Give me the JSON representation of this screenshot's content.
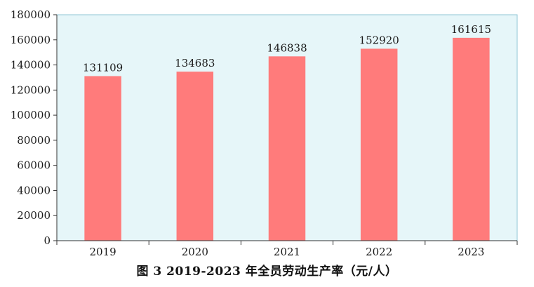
{
  "caption": "图 3   2019-2023 年全员劳动生产率（元/人）",
  "colors": {
    "bar": "#ff7b7b",
    "plot_background": "#e6f6f9",
    "plot_border": "#8fc6d6",
    "axis": "#333333"
  },
  "chart_data": {
    "type": "bar",
    "categories": [
      "2019",
      "2020",
      "2021",
      "2022",
      "2023"
    ],
    "values": [
      131109,
      134683,
      146838,
      152920,
      161615
    ],
    "data_labels": [
      "131109",
      "134683",
      "146838",
      "152920",
      "161615"
    ],
    "y_ticks": [
      "0",
      "20000",
      "40000",
      "60000",
      "80000",
      "100000",
      "120000",
      "140000",
      "160000",
      "180000"
    ],
    "ylim": [
      0,
      180000
    ],
    "title": "",
    "xlabel": "",
    "ylabel": "",
    "grid": false,
    "legend": "none"
  }
}
